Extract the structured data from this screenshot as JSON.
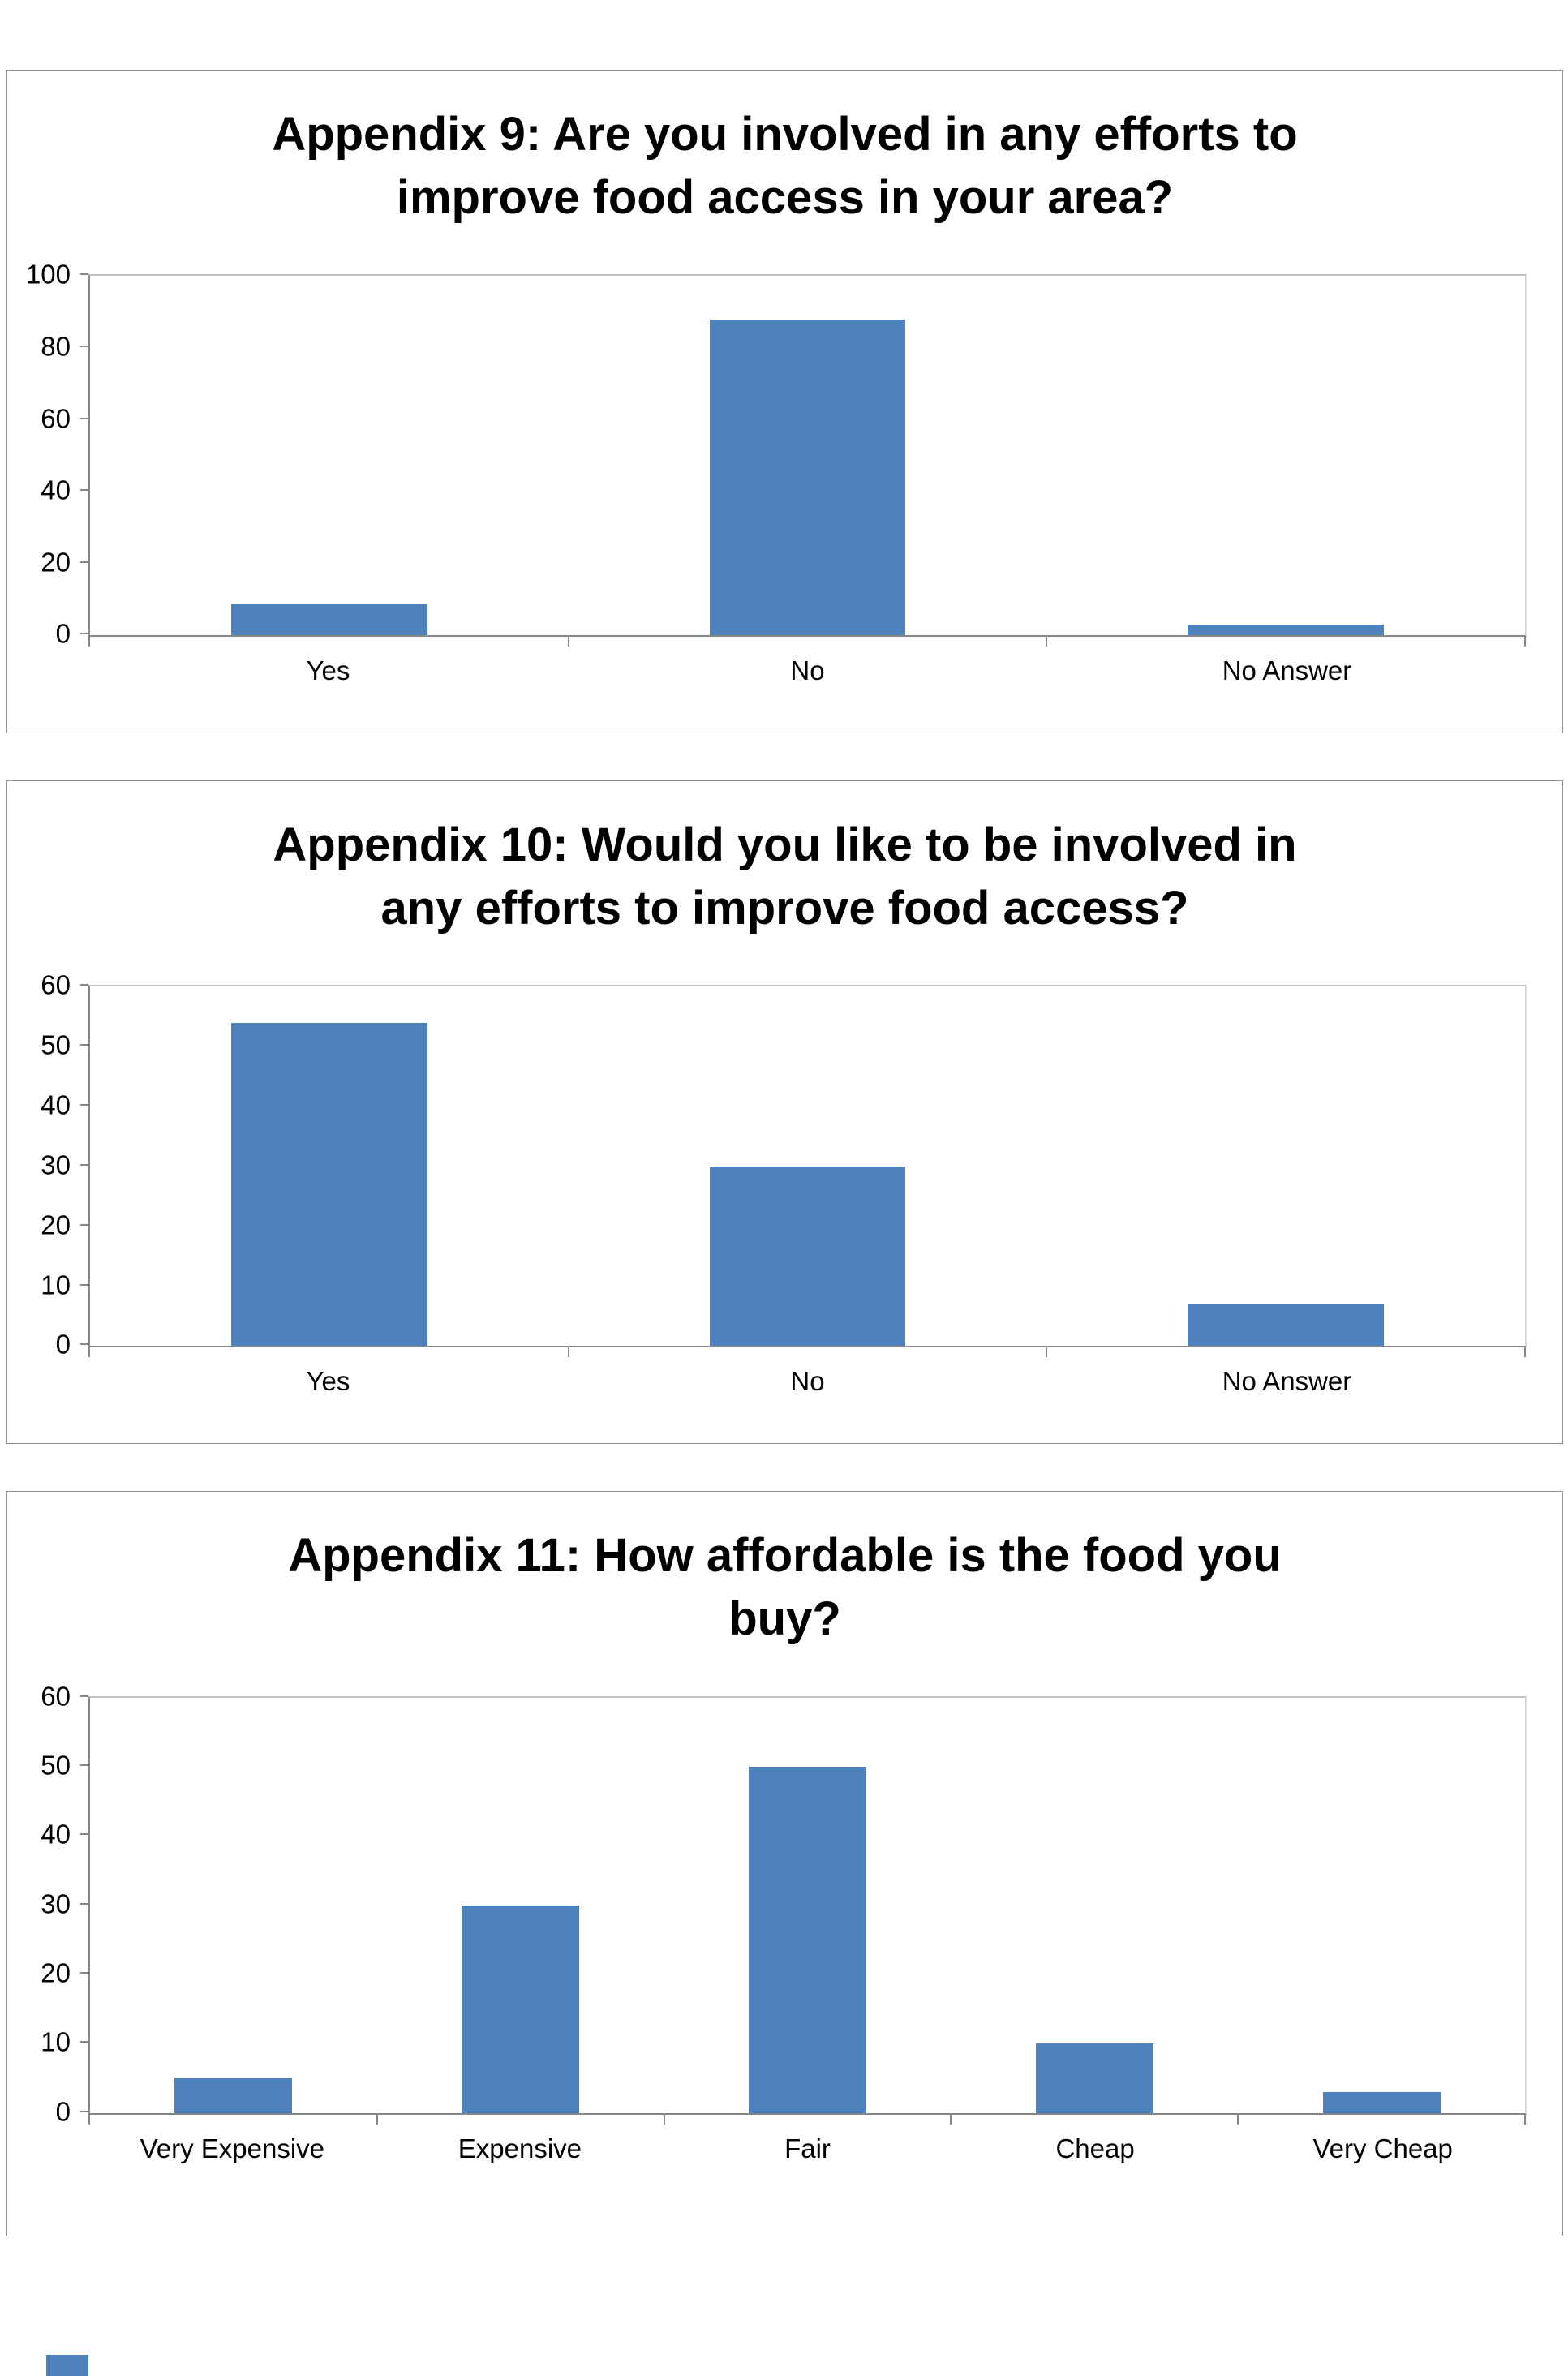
{
  "page": {
    "background": "#ffffff"
  },
  "fragment": {
    "color": "#4F81BD"
  },
  "chart_data": [
    {
      "type": "bar",
      "title": "Appendix 9: Are you involved in any efforts to\nimprove food access in your area?",
      "categories": [
        "Yes",
        "No",
        "No Answer"
      ],
      "values": [
        9,
        88,
        3
      ],
      "xlabel": "",
      "ylabel": "",
      "ylim": [
        0,
        100
      ],
      "yticks": [
        0,
        20,
        40,
        60,
        80,
        100
      ],
      "bar_color": "#4F81BD",
      "grid": false,
      "legend": false
    },
    {
      "type": "bar",
      "title": "Appendix 10: Would you like to be involved in\nany efforts to improve food access?",
      "categories": [
        "Yes",
        "No",
        "No Answer"
      ],
      "values": [
        54,
        30,
        7
      ],
      "xlabel": "",
      "ylabel": "",
      "ylim": [
        0,
        60
      ],
      "yticks": [
        0,
        10,
        20,
        30,
        40,
        50,
        60
      ],
      "bar_color": "#4F81BD",
      "grid": false,
      "legend": false
    },
    {
      "type": "bar",
      "title": "Appendix 11: How affordable is the food you\nbuy?",
      "categories": [
        "Very Expensive",
        "Expensive",
        "Fair",
        "Cheap",
        "Very Cheap"
      ],
      "values": [
        5,
        30,
        50,
        10,
        3
      ],
      "xlabel": "",
      "ylabel": "",
      "ylim": [
        0,
        60
      ],
      "yticks": [
        0,
        10,
        20,
        30,
        40,
        50,
        60
      ],
      "bar_color": "#4F81BD",
      "grid": false,
      "legend": false
    }
  ]
}
